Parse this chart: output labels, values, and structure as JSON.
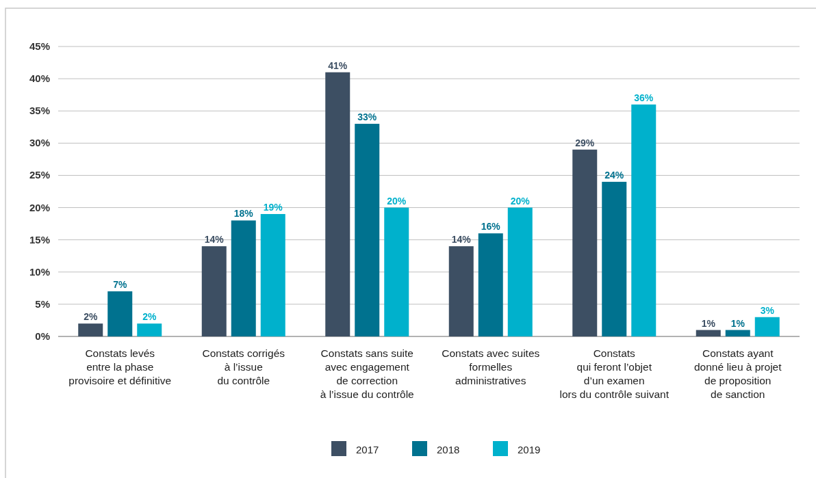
{
  "chart_data": {
    "type": "bar",
    "categories": [
      "Constats levés\nentre la phase\nprovisoire et définitive",
      "Constats corrigés\nà l’issue\ndu contrôle",
      "Constats sans suite\navec engagement\nde correction\nà l’issue du contrôle",
      "Constats avec suites\nformelles\nadministratives",
      "Constats\nqui feront l’objet\nd’un examen\nlors du contrôle suivant",
      "Constats ayant\ndonné lieu à projet\nde proposition\nde sanction"
    ],
    "series": [
      {
        "name": "2017",
        "color": "#3d4f63",
        "values": [
          2,
          14,
          41,
          14,
          29,
          1
        ],
        "value_labels": [
          "2%",
          "14%",
          "41%",
          "14%",
          "29%",
          "1%"
        ]
      },
      {
        "name": "2018",
        "color": "#00728f",
        "values": [
          7,
          18,
          33,
          16,
          24,
          1
        ],
        "value_labels": [
          "7%",
          "18%",
          "33%",
          "16%",
          "24%",
          "1%"
        ]
      },
      {
        "name": "2019",
        "color": "#00b1cc",
        "values": [
          2,
          19,
          20,
          20,
          36,
          3
        ],
        "value_labels": [
          "2%",
          "19%",
          "20%",
          "20%",
          "36%",
          "3%"
        ]
      }
    ],
    "ylim": [
      0,
      45
    ],
    "yticks": [
      {
        "value": 0,
        "label": "0%"
      },
      {
        "value": 5,
        "label": "5%"
      },
      {
        "value": 10,
        "label": "10%"
      },
      {
        "value": 15,
        "label": "15%"
      },
      {
        "value": 20,
        "label": "20%"
      },
      {
        "value": 25,
        "label": "25%"
      },
      {
        "value": 30,
        "label": "30%"
      },
      {
        "value": 35,
        "label": "35%"
      },
      {
        "value": 40,
        "label": "40%"
      },
      {
        "value": 45,
        "label": "45%"
      }
    ],
    "grid": "y",
    "legend": "bottom"
  }
}
